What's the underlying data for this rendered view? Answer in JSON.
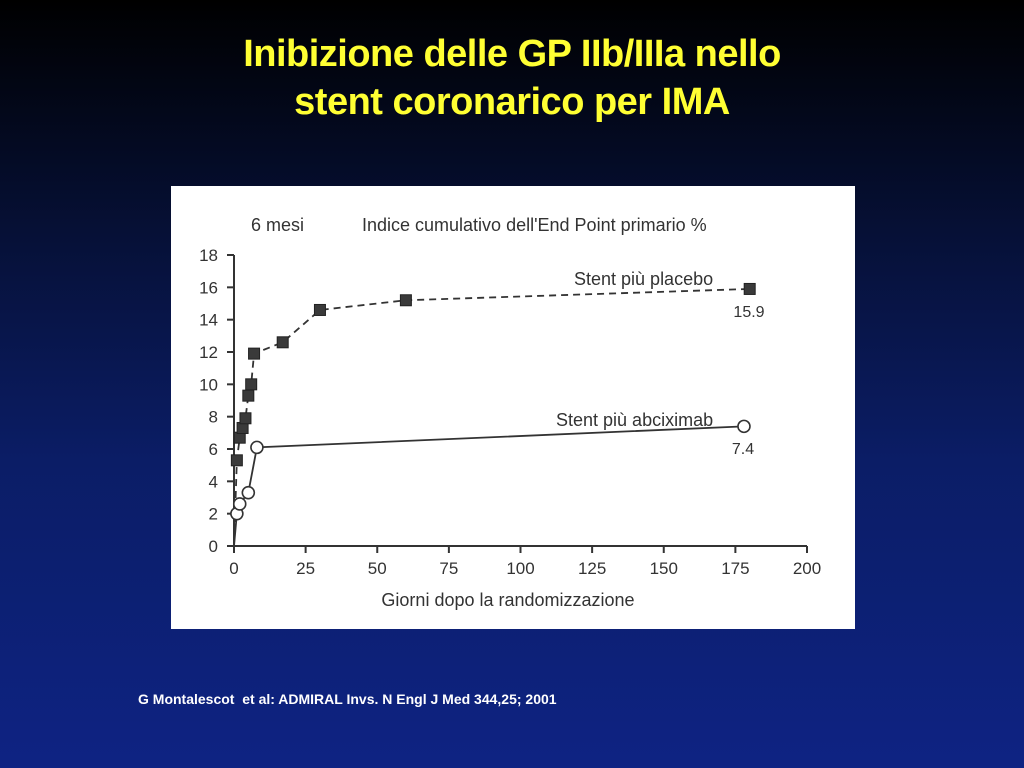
{
  "slide": {
    "title_line1": "Inibizione delle GP IIb/IIIa nello",
    "title_line2": "stent coronarico per IMA",
    "citation": "G Montalescot  et al: ADMIRAL Invs. N Engl J Med 344,25; 2001"
  },
  "chart_data": {
    "type": "line",
    "title": "Indice cumulativo dell'End Point primario %",
    "subtitle": "6 mesi",
    "xlabel": "Giorni dopo la randomizzazione",
    "ylabel": "",
    "xlim": [
      0,
      200
    ],
    "ylim": [
      0,
      18
    ],
    "xticks": [
      0,
      25,
      50,
      75,
      100,
      125,
      150,
      175,
      200
    ],
    "yticks": [
      0,
      2,
      4,
      6,
      8,
      10,
      12,
      14,
      16,
      18
    ],
    "grid": false,
    "legend": "inline labels",
    "series": [
      {
        "name": "Stent più placebo",
        "marker": "filled-square",
        "line_style": "dashed",
        "color": "#333333",
        "x": [
          0,
          1,
          2,
          3,
          4,
          5,
          6,
          7,
          17,
          30,
          60,
          180
        ],
        "y": [
          0,
          5.3,
          6.7,
          7.3,
          7.9,
          9.3,
          10.0,
          11.9,
          12.6,
          14.6,
          15.2,
          15.9
        ],
        "end_label": "15.9"
      },
      {
        "name": "Stent più abciximab",
        "marker": "open-circle",
        "line_style": "solid",
        "color": "#333333",
        "x": [
          0,
          1,
          2,
          5,
          8,
          178
        ],
        "y": [
          0,
          2.0,
          2.6,
          3.3,
          6.1,
          7.4
        ],
        "end_label": "7.4"
      }
    ]
  }
}
